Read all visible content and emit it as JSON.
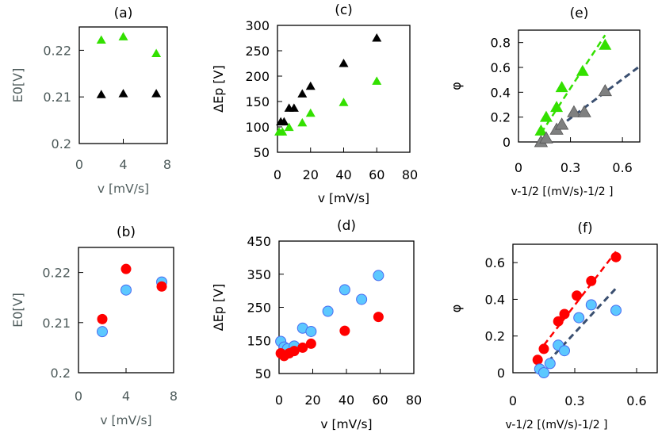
{
  "colors": {
    "green": "#33e000",
    "black": "#000000",
    "gray": "#7f8080",
    "red": "#ff0000",
    "blue": "#5cc8ff",
    "blue_edge": "#4a6cf0",
    "navy_line": "#3a4f70",
    "axis_text_muted": "#4e5b5b"
  },
  "chart_data": [
    {
      "id": "a",
      "type": "scatter",
      "title": "(a)",
      "xlabel": "v [mV/s]",
      "ylabel": "E0[V]",
      "xlim": [
        0,
        8
      ],
      "ylim": [
        0.2,
        0.225
      ],
      "xticks": [
        "0",
        "4",
        "8"
      ],
      "xtick_values": [
        0,
        4,
        8
      ],
      "yticks": [
        "0.2",
        "0.21",
        "0.22"
      ],
      "ytick_values": [
        0.2,
        0.21,
        0.22
      ],
      "muted_text": true,
      "series": [
        {
          "name": "green-triangles",
          "marker": "triangle",
          "color": "green",
          "points": [
            [
              2,
              0.2222
            ],
            [
              4,
              0.2229
            ],
            [
              7,
              0.2193
            ]
          ]
        },
        {
          "name": "black-triangles",
          "marker": "triangle",
          "color": "black",
          "points": [
            [
              2,
              0.2105
            ],
            [
              4,
              0.2107
            ],
            [
              7,
              0.2107
            ]
          ]
        }
      ]
    },
    {
      "id": "b",
      "type": "scatter",
      "title": "(b)",
      "xlabel": "v [mV/s]",
      "ylabel": "E0[V]",
      "xlim": [
        0,
        8
      ],
      "ylim": [
        0.2,
        0.225
      ],
      "xticks": [
        "0",
        "4",
        "8"
      ],
      "xtick_values": [
        0,
        4,
        8
      ],
      "yticks": [
        "0.2",
        "0.21",
        "0.22"
      ],
      "ytick_values": [
        0.2,
        0.21,
        0.22
      ],
      "muted_text": true,
      "series": [
        {
          "name": "blue-circles",
          "marker": "circle",
          "color": "blue",
          "points": [
            [
              2,
              0.2082
            ],
            [
              4,
              0.2165
            ],
            [
              7,
              0.2181
            ]
          ]
        },
        {
          "name": "red-circles",
          "marker": "circle",
          "color": "red",
          "points": [
            [
              2,
              0.2107
            ],
            [
              4,
              0.2207
            ],
            [
              7,
              0.2172
            ]
          ]
        }
      ]
    },
    {
      "id": "c",
      "type": "scatter",
      "title": "(c)",
      "xlabel": "v [mV/s]",
      "ylabel": "ΔEp [V]",
      "xlim": [
        0,
        80
      ],
      "ylim": [
        50,
        300
      ],
      "xticks": [
        "0",
        "20",
        "40",
        "60",
        "80"
      ],
      "xtick_values": [
        0,
        20,
        40,
        60,
        80
      ],
      "yticks": [
        "50",
        "100",
        "150",
        "200",
        "250",
        "300"
      ],
      "ytick_values": [
        50,
        100,
        150,
        200,
        250,
        300
      ],
      "series": [
        {
          "name": "black-triangles",
          "marker": "triangle",
          "color": "black",
          "points": [
            [
              2,
              110
            ],
            [
              4,
              110
            ],
            [
              7,
              137
            ],
            [
              10,
              137
            ],
            [
              15,
              165
            ],
            [
              20,
              180
            ],
            [
              40,
              225
            ],
            [
              60,
              275
            ]
          ]
        },
        {
          "name": "green-triangles",
          "marker": "triangle",
          "color": "green",
          "points": [
            [
              1,
              90
            ],
            [
              3,
              90
            ],
            [
              7,
              99
            ],
            [
              15,
              108
            ],
            [
              20,
              127
            ],
            [
              40,
              148
            ],
            [
              60,
              190
            ]
          ]
        }
      ]
    },
    {
      "id": "d",
      "type": "scatter",
      "title": "(d)",
      "xlabel": "v [mV/s]",
      "ylabel": "ΔEp [V]",
      "xlim": [
        0,
        80
      ],
      "ylim": [
        50,
        450
      ],
      "xticks": [
        "0",
        "20",
        "40",
        "60",
        "80"
      ],
      "xtick_values": [
        0,
        20,
        40,
        60,
        80
      ],
      "yticks": [
        "50",
        "150",
        "250",
        "350",
        "450"
      ],
      "ytick_values": [
        50,
        150,
        250,
        350,
        450
      ],
      "series": [
        {
          "name": "blue-circles",
          "marker": "circle",
          "color": "blue",
          "points": [
            [
              1,
              147
            ],
            [
              3,
              130
            ],
            [
              5,
              125
            ],
            [
              9,
              133
            ],
            [
              14,
              187
            ],
            [
              19,
              177
            ],
            [
              29,
              238
            ],
            [
              39,
              303
            ],
            [
              49,
              274
            ],
            [
              59,
              346
            ]
          ]
        },
        {
          "name": "red-circles",
          "marker": "circle",
          "color": "red",
          "points": [
            [
              1,
              111
            ],
            [
              3,
              103
            ],
            [
              6,
              111
            ],
            [
              9,
              118
            ],
            [
              14,
              128
            ],
            [
              19,
              140
            ],
            [
              39,
              179
            ],
            [
              59,
              221
            ]
          ]
        }
      ]
    },
    {
      "id": "e",
      "type": "scatter",
      "title": "(e)",
      "xlabel": "v-1/2  [(mV/s)-1/2 ]",
      "ylabel": "φ",
      "xlim": [
        0,
        0.7
      ],
      "ylim": [
        0,
        0.9
      ],
      "xticks": [
        "0",
        "0.3",
        "0.6"
      ],
      "xtick_values": [
        0,
        0.3,
        0.6
      ],
      "yticks": [
        "0",
        "0.2",
        "0.4",
        "0.6",
        "0.8"
      ],
      "ytick_values": [
        0,
        0.2,
        0.4,
        0.6,
        0.8
      ],
      "fits": [
        {
          "name": "green-fit",
          "color": "green",
          "from": [
            0.13,
            0.07
          ],
          "to": [
            0.5,
            0.86
          ]
        },
        {
          "name": "navy-fit",
          "color": "navy_line",
          "from": [
            0.28,
            0.17
          ],
          "to": [
            0.7,
            0.61
          ]
        }
      ],
      "series": [
        {
          "name": "green-triangles",
          "marker": "triangle",
          "color": "green",
          "points": [
            [
              0.13,
              0.09
            ],
            [
              0.16,
              0.2
            ],
            [
              0.22,
              0.28
            ],
            [
              0.25,
              0.44
            ],
            [
              0.37,
              0.57
            ],
            [
              0.5,
              0.78
            ]
          ]
        },
        {
          "name": "gray-triangles",
          "marker": "triangle",
          "color": "gray",
          "points": [
            [
              0.13,
              0.0
            ],
            [
              0.16,
              0.03
            ],
            [
              0.22,
              0.1
            ],
            [
              0.25,
              0.14
            ],
            [
              0.32,
              0.24
            ],
            [
              0.38,
              0.24
            ],
            [
              0.5,
              0.41
            ]
          ]
        }
      ]
    },
    {
      "id": "f",
      "type": "scatter",
      "title": "(f)",
      "xlabel": "v-1/2  [(mV/s)-1/2 ]",
      "ylabel": "φ",
      "xlim": [
        0,
        0.7
      ],
      "ylim": [
        0,
        0.7
      ],
      "xticks": [
        "0",
        "0.3",
        "0.6"
      ],
      "xtick_values": [
        0,
        0.3,
        0.6
      ],
      "yticks": [
        "0",
        "0.2",
        "0.4",
        "0.6"
      ],
      "ytick_values": [
        0,
        0.2,
        0.4,
        0.6
      ],
      "fits": [
        {
          "name": "red-fit",
          "color": "red",
          "from": [
            0.15,
            0.15
          ],
          "to": [
            0.5,
            0.66
          ]
        },
        {
          "name": "navy-fit",
          "color": "navy_line",
          "from": [
            0.17,
            0.06
          ],
          "to": [
            0.5,
            0.46
          ]
        }
      ],
      "series": [
        {
          "name": "red-circles",
          "marker": "circle",
          "color": "red",
          "points": [
            [
              0.12,
              0.07
            ],
            [
              0.15,
              0.13
            ],
            [
              0.22,
              0.28
            ],
            [
              0.25,
              0.32
            ],
            [
              0.31,
              0.42
            ],
            [
              0.38,
              0.5
            ],
            [
              0.5,
              0.63
            ]
          ]
        },
        {
          "name": "blue-circles",
          "marker": "circle",
          "color": "blue",
          "points": [
            [
              0.13,
              0.02
            ],
            [
              0.15,
              0.0
            ],
            [
              0.18,
              0.05
            ],
            [
              0.22,
              0.15
            ],
            [
              0.25,
              0.12
            ],
            [
              0.32,
              0.3
            ],
            [
              0.38,
              0.37
            ],
            [
              0.5,
              0.34
            ]
          ]
        }
      ]
    }
  ]
}
